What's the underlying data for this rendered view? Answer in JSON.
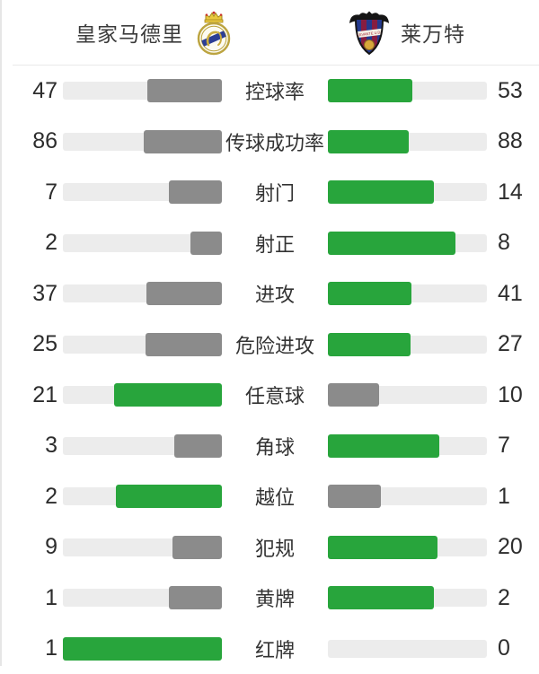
{
  "header": {
    "home": {
      "name": "皇家马德里"
    },
    "away": {
      "name": "莱万特",
      "crest_text": "LEVANTE U.D."
    }
  },
  "colors": {
    "winner_green": "#28A53C",
    "loser_gray": "#8B8B8B",
    "bar_track": "#ECECEC"
  },
  "stats": [
    {
      "label": "控球率",
      "home": 47,
      "away": 53
    },
    {
      "label": "传球成功率",
      "home": 86,
      "away": 88
    },
    {
      "label": "射门",
      "home": 7,
      "away": 14
    },
    {
      "label": "射正",
      "home": 2,
      "away": 8
    },
    {
      "label": "进攻",
      "home": 37,
      "away": 41
    },
    {
      "label": "危险进攻",
      "home": 25,
      "away": 27
    },
    {
      "label": "任意球",
      "home": 21,
      "away": 10
    },
    {
      "label": "角球",
      "home": 3,
      "away": 7
    },
    {
      "label": "越位",
      "home": 2,
      "away": 1
    },
    {
      "label": "犯规",
      "home": 9,
      "away": 20
    },
    {
      "label": "黄牌",
      "home": 1,
      "away": 2
    },
    {
      "label": "红牌",
      "home": 1,
      "away": 0
    }
  ],
  "chart_data": {
    "type": "bar",
    "title": "皇家马德里 vs 莱万特",
    "categories": [
      "控球率",
      "传球成功率",
      "射门",
      "射正",
      "进攻",
      "危险进攻",
      "任意球",
      "角球",
      "越位",
      "犯规",
      "黄牌",
      "红牌"
    ],
    "series": [
      {
        "name": "皇家马德里",
        "values": [
          47,
          86,
          7,
          2,
          37,
          25,
          21,
          3,
          2,
          9,
          1,
          1
        ]
      },
      {
        "name": "莱万特",
        "values": [
          53,
          88,
          14,
          8,
          41,
          27,
          10,
          7,
          1,
          20,
          2,
          0
        ]
      }
    ],
    "layout": "mirrored horizontal bar pairs; each side fill fraction = value/(home+away); higher value rendered green, lower rendered gray; labels centered between bars; values at outer edges",
    "legend_position": "top"
  }
}
